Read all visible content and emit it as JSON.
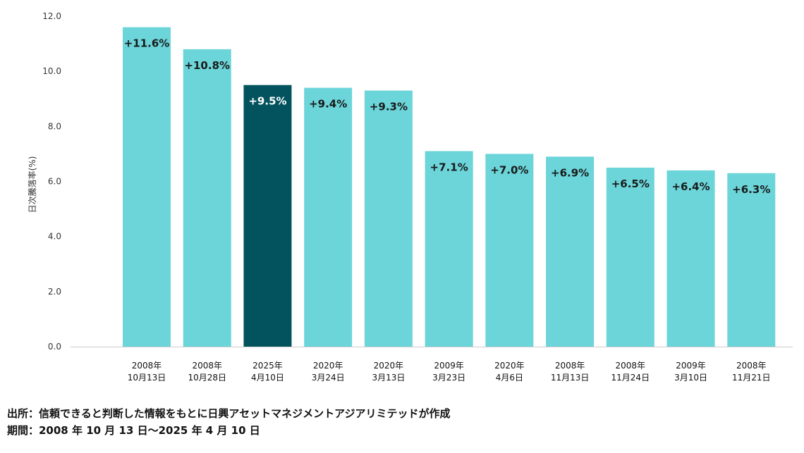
{
  "chart_data": {
    "type": "bar",
    "categories": [
      [
        "2008年",
        "10月13日"
      ],
      [
        "2008年",
        "10月28日"
      ],
      [
        "2025年",
        "4月10日"
      ],
      [
        "2020年",
        "3月24日"
      ],
      [
        "2020年",
        "3月13日"
      ],
      [
        "2009年",
        "3月23日"
      ],
      [
        "2020年",
        "4月6日"
      ],
      [
        "2008年",
        "11月13日"
      ],
      [
        "2008年",
        "11月24日"
      ],
      [
        "2009年",
        "3月10日"
      ],
      [
        "2008年",
        "11月21日"
      ]
    ],
    "values": [
      11.6,
      10.8,
      9.5,
      9.4,
      9.3,
      7.1,
      7.0,
      6.9,
      6.5,
      6.4,
      6.3
    ],
    "data_labels": [
      "+11.6%",
      "+10.8%",
      "+9.5%",
      "+9.4%",
      "+9.3%",
      "+7.1%",
      "+7.0%",
      "+6.9%",
      "+6.5%",
      "+6.4%",
      "+6.3%"
    ],
    "highlight_index": 2,
    "ylabel": "日次騰落率(%)",
    "ylim": [
      0,
      12
    ],
    "yticks": [
      "0.0",
      "2.0",
      "4.0",
      "6.0",
      "8.0",
      "10.0",
      "12.0"
    ],
    "grid": false,
    "colors": {
      "bar": "#6bd5d9",
      "highlight": "#03535f",
      "label": "#1a1a1a",
      "highlight_label": "#ffffff",
      "axis": "#cccccc"
    }
  },
  "footer": {
    "source": "出所：信頼できると判断した情報をもとに日興アセットマネジメントアジアリミテッドが作成",
    "period": "期間：2008 年 10 月 13 日～2025 年 4 月 10 日"
  }
}
